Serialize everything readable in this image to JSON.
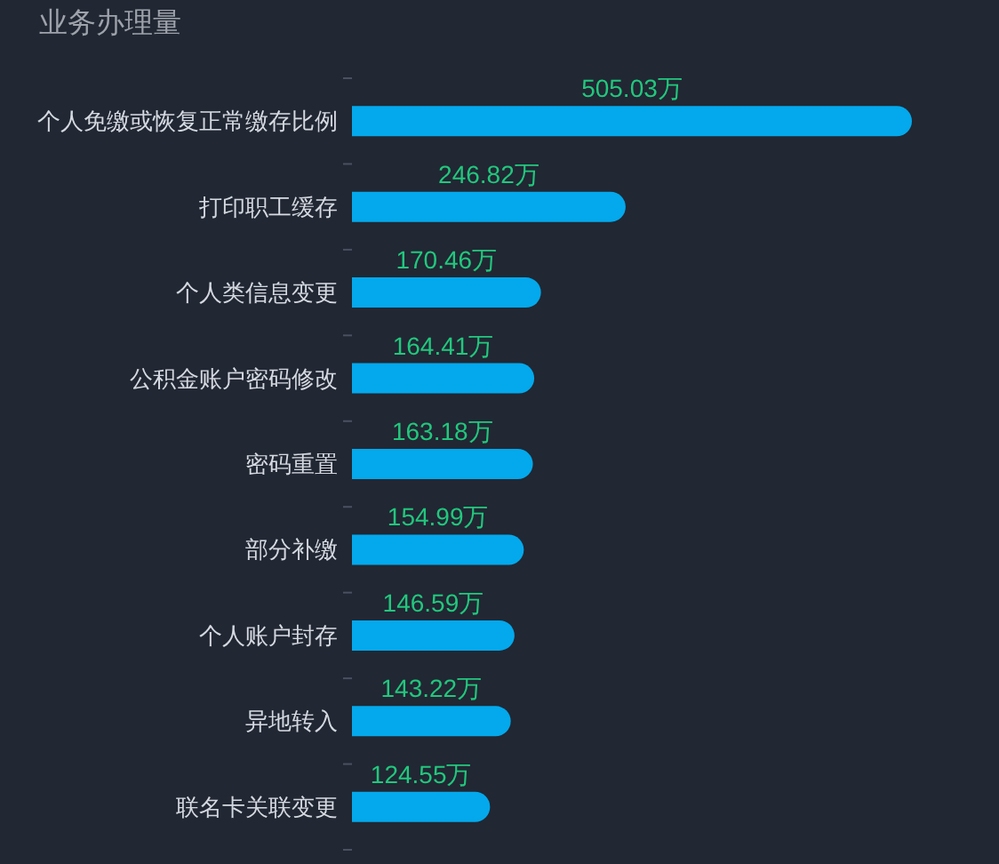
{
  "chart_data": {
    "type": "bar",
    "orientation": "horizontal",
    "title": "业务办理量",
    "categories": [
      "个人免缴或恢复正常缴存比例",
      "打印职工缓存",
      "个人类信息变更",
      "公积金账户密码修改",
      "密码重置",
      "部分补缴",
      "个人账户封存",
      "异地转入",
      "联名卡关联变更"
    ],
    "values": [
      505.03,
      246.82,
      170.46,
      164.41,
      163.18,
      154.99,
      146.59,
      143.22,
      124.55
    ],
    "value_labels": [
      "505.03万",
      "246.82万",
      "170.46万",
      "164.41万",
      "163.18万",
      "154.99万",
      "146.59万",
      "143.22万",
      "124.55万"
    ],
    "color": "#03a9ec"
  }
}
